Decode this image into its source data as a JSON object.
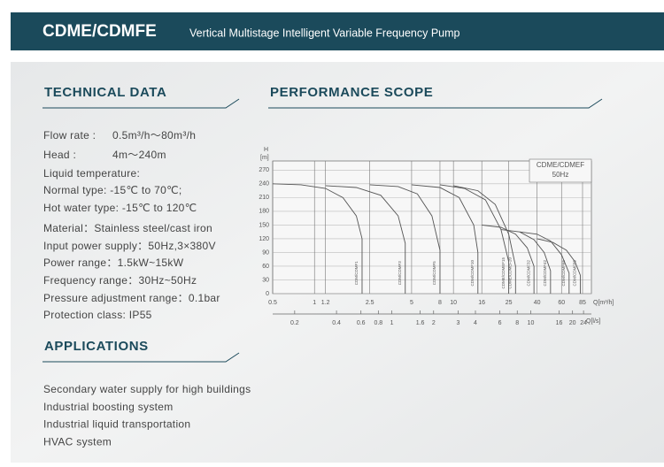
{
  "header": {
    "title": "CDME/CDMFE",
    "subtitle": "Vertical Multistage Intelligent Variable Frequency Pump"
  },
  "technical_data": {
    "heading": "TECHNICAL DATA",
    "flow_rate": {
      "label": "Flow rate :",
      "value": "0.5m³/h～80m³/h"
    },
    "head": {
      "label": "Head :",
      "value": "4m～240m"
    },
    "lines": [
      "Liquid temperature:",
      "Normal type: -15℃ to 70℃;",
      "Hot water type: -15℃ to 120℃",
      "Material：Stainless steel/cast iron",
      "Input power supply：50Hz,3×380V",
      "Power range：1.5kW~15kW",
      "Frequency range：30Hz~50Hz",
      "Pressure adjustment range：0.1bar",
      "Protection class: IP55"
    ]
  },
  "applications": {
    "heading": "APPLICATIONS",
    "items": [
      "Secondary water supply for high buildings",
      "Industrial boosting system",
      "Industrial liquid transportation",
      "HVAC system"
    ]
  },
  "performance": {
    "heading": "PERFORMANCE SCOPE"
  },
  "chart_data": {
    "type": "line",
    "y_label": "H",
    "y_unit": "[m]",
    "x_label": "Q[m³/h]",
    "x2_label": "Q[l/s]",
    "legend_title": "CDME/CDMEF",
    "legend_subtitle": "50Hz",
    "log_x": true,
    "xlim": [
      0.5,
      85
    ],
    "xticks": [
      0.5,
      1,
      1.2,
      2.5,
      5,
      8,
      10,
      16,
      25,
      40,
      60,
      85
    ],
    "x2lim": [
      0.1389,
      23.61
    ],
    "x2ticks": [
      0.2,
      0.4,
      0.6,
      0.8,
      1,
      1.6,
      2,
      3,
      4,
      6,
      8,
      10,
      16,
      20,
      24
    ],
    "ylim": [
      0,
      290
    ],
    "yticks": [
      0,
      30,
      60,
      90,
      120,
      150,
      180,
      210,
      240,
      270
    ],
    "grid": true,
    "color": "#555555",
    "series": [
      {
        "name": "CDM/CDMF1",
        "x": [
          0.5,
          0.8,
          1.2,
          1.6,
          2,
          2.2,
          2.2
        ],
        "values": [
          240,
          238,
          230,
          210,
          170,
          120,
          0
        ]
      },
      {
        "name": "CDM/CDMF3",
        "x": [
          1.2,
          2,
          3,
          4,
          4.5,
          4.5
        ],
        "values": [
          236,
          232,
          215,
          170,
          110,
          0
        ]
      },
      {
        "name": "CDM/CDMF5",
        "x": [
          2.5,
          4,
          5.5,
          7,
          8,
          8
        ],
        "values": [
          238,
          234,
          218,
          170,
          95,
          0
        ]
      },
      {
        "name": "CDM/CDMF10",
        "x": [
          5,
          8,
          11,
          14,
          15,
          15
        ],
        "values": [
          238,
          232,
          210,
          150,
          90,
          0
        ]
      },
      {
        "name": "CDME/CDMEF15",
        "x": [
          8,
          12,
          17,
          22,
          25,
          25
        ],
        "values": [
          238,
          230,
          205,
          140,
          70,
          0
        ]
      },
      {
        "name": "CDME/CDMEF20",
        "x": [
          10,
          15,
          20,
          25,
          28,
          28
        ],
        "values": [
          236,
          225,
          195,
          130,
          60,
          0
        ]
      },
      {
        "name": "CDM/CDMF32",
        "x": [
          16,
          22,
          28,
          34,
          38,
          38
        ],
        "values": [
          150,
          145,
          130,
          100,
          60,
          0
        ]
      },
      {
        "name": "CDM/CDMF42",
        "x": [
          22,
          30,
          38,
          45,
          50,
          50
        ],
        "values": [
          140,
          135,
          118,
          90,
          50,
          0
        ]
      },
      {
        "name": "CDM/CDMF65",
        "x": [
          30,
          40,
          50,
          60,
          68,
          68
        ],
        "values": [
          135,
          130,
          115,
          85,
          45,
          0
        ]
      },
      {
        "name": "CDM/CDMF85",
        "x": [
          40,
          52,
          65,
          75,
          82,
          82
        ],
        "values": [
          120,
          112,
          95,
          70,
          40,
          0
        ]
      }
    ]
  }
}
